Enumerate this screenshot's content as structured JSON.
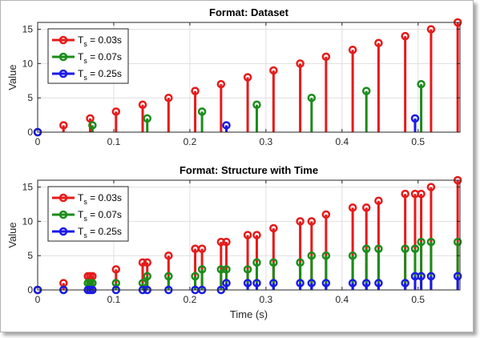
{
  "chart_data": [
    {
      "type": "stem",
      "title": "Format: Dataset",
      "xlabel": "",
      "ylabel": "Value",
      "xlim": [
        0,
        0.555
      ],
      "ylim": [
        0,
        16
      ],
      "xticks": [
        "0",
        "0.1",
        "0.2",
        "0.3",
        "0.4",
        "0.5"
      ],
      "yticks": [
        "0",
        "5",
        "10",
        "15"
      ],
      "grid": true,
      "legend_position": "top-left",
      "series": [
        {
          "name_main": "T",
          "name_sub": "s",
          "name_rest": " = 0.03s",
          "color": "#e61a1a",
          "x": [
            0,
            0.034,
            0.069,
            0.103,
            0.138,
            0.172,
            0.207,
            0.241,
            0.276,
            0.31,
            0.345,
            0.379,
            0.414,
            0.448,
            0.483,
            0.517,
            0.552
          ],
          "y": [
            0,
            1,
            2,
            3,
            4,
            5,
            6,
            7,
            8,
            9,
            10,
            11,
            12,
            13,
            14,
            15,
            16
          ]
        },
        {
          "name_main": "T",
          "name_sub": "s",
          "name_rest": " = 0.07s",
          "color": "#1a8c1a",
          "x": [
            0,
            0.072,
            0.144,
            0.216,
            0.288,
            0.36,
            0.432,
            0.504
          ],
          "y": [
            0,
            1,
            2,
            3,
            4,
            5,
            6,
            7
          ]
        },
        {
          "name_main": "T",
          "name_sub": "s",
          "name_rest": " = 0.25s",
          "color": "#1a1ae6",
          "x": [
            0,
            0.248,
            0.496
          ],
          "y": [
            0,
            1,
            2
          ]
        }
      ]
    },
    {
      "type": "stem",
      "title": "Format: Structure with Time",
      "xlabel": "Time (s)",
      "ylabel": "Value",
      "xlim": [
        0,
        0.555
      ],
      "ylim": [
        0,
        16
      ],
      "xticks": [
        "0",
        "0.1",
        "0.2",
        "0.3",
        "0.4",
        "0.5"
      ],
      "yticks": [
        "0",
        "5",
        "10",
        "15"
      ],
      "grid": true,
      "legend_position": "top-left",
      "series": [
        {
          "name_main": "T",
          "name_sub": "s",
          "name_rest": " = 0.03s",
          "color": "#e61a1a",
          "x": [
            0,
            0.034,
            0.066,
            0.069,
            0.072,
            0.103,
            0.138,
            0.144,
            0.172,
            0.207,
            0.216,
            0.241,
            0.248,
            0.276,
            0.288,
            0.31,
            0.345,
            0.36,
            0.379,
            0.414,
            0.432,
            0.448,
            0.483,
            0.496,
            0.504,
            0.517,
            0.552
          ],
          "y": [
            0,
            1,
            2,
            2,
            2,
            3,
            4,
            4,
            5,
            6,
            6,
            7,
            7,
            8,
            8,
            9,
            10,
            10,
            11,
            12,
            12,
            13,
            14,
            14,
            14,
            15,
            16
          ]
        },
        {
          "name_main": "T",
          "name_sub": "s",
          "name_rest": " = 0.07s",
          "color": "#1a8c1a",
          "x": [
            0,
            0.034,
            0.066,
            0.069,
            0.072,
            0.103,
            0.138,
            0.144,
            0.172,
            0.207,
            0.216,
            0.241,
            0.248,
            0.276,
            0.288,
            0.31,
            0.345,
            0.36,
            0.379,
            0.414,
            0.432,
            0.448,
            0.483,
            0.496,
            0.504,
            0.517,
            0.552
          ],
          "y": [
            0,
            0,
            1,
            1,
            1,
            1,
            1,
            2,
            2,
            2,
            3,
            3,
            3,
            3,
            4,
            4,
            4,
            5,
            5,
            5,
            6,
            6,
            6,
            6,
            7,
            7,
            7
          ]
        },
        {
          "name_main": "T",
          "name_sub": "s",
          "name_rest": " = 0.25s",
          "color": "#1a1ae6",
          "x": [
            0,
            0.034,
            0.066,
            0.069,
            0.072,
            0.103,
            0.138,
            0.144,
            0.172,
            0.207,
            0.216,
            0.241,
            0.248,
            0.276,
            0.288,
            0.31,
            0.345,
            0.36,
            0.379,
            0.414,
            0.432,
            0.448,
            0.483,
            0.496,
            0.504,
            0.517,
            0.552
          ],
          "y": [
            0,
            0,
            0,
            0,
            0,
            0,
            0,
            0,
            0,
            0,
            0,
            0,
            1,
            1,
            1,
            1,
            1,
            1,
            1,
            1,
            1,
            1,
            1,
            2,
            2,
            2,
            2
          ]
        }
      ]
    }
  ]
}
